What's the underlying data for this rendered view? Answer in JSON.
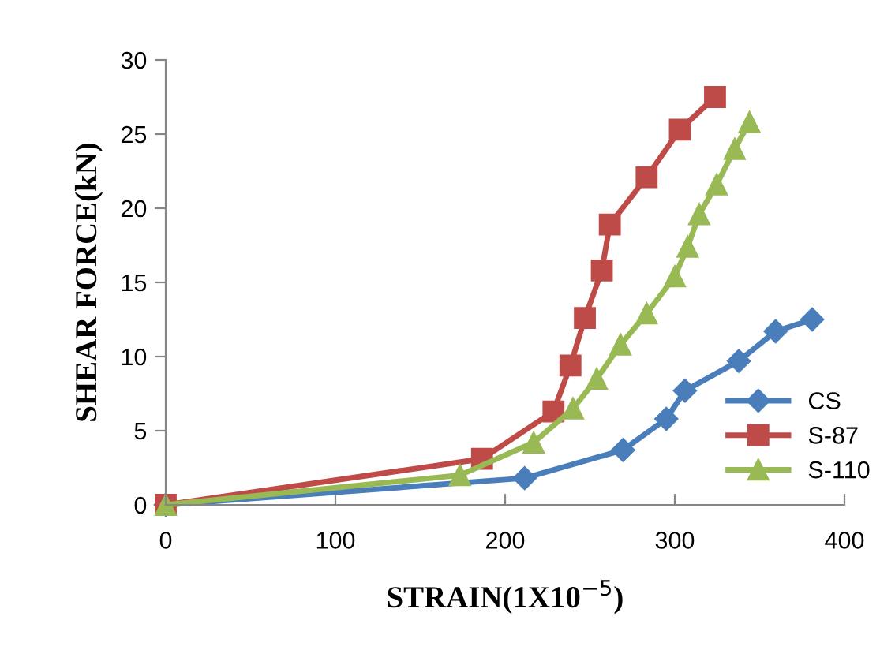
{
  "chart_data": {
    "type": "line",
    "xlabel": "STRAIN(1X10$^{−5}$)",
    "ylabel": "SHEAR FORCE(kN)",
    "xlim": [
      0,
      400
    ],
    "xticks": [
      0,
      100,
      200,
      300,
      400
    ],
    "ylim": [
      0,
      30
    ],
    "yticks": [
      0,
      5,
      10,
      15,
      20,
      25,
      30
    ],
    "grid": false,
    "legend": "right",
    "line_style": "solid",
    "series": [
      {
        "name": "CS",
        "color": "#4a7ebb",
        "marker": "diamond",
        "x": [
          0,
          211.5,
          269.5,
          295,
          306,
          337.7,
          359.4,
          381
        ],
        "values": [
          0,
          1.8,
          3.7,
          5.8,
          7.7,
          9.7,
          11.7,
          12.5
        ]
      },
      {
        "name": "S-87",
        "color": "#be4b48",
        "marker": "square",
        "x": [
          0,
          186.4,
          228.5,
          238.5,
          247,
          257,
          261.7,
          283.4,
          303,
          323.7
        ],
        "values": [
          0,
          3.1,
          6.3,
          9.4,
          12.6,
          15.8,
          18.9,
          22.1,
          25.3,
          27.5
        ]
      },
      {
        "name": "S-110",
        "color": "#98b954",
        "marker": "triangle",
        "x": [
          0,
          173.4,
          216.8,
          240,
          254,
          268,
          283.4,
          300,
          307.6,
          314.4,
          324.7,
          335.3,
          344
        ],
        "values": [
          0,
          2.0,
          4.2,
          6.5,
          8.5,
          10.8,
          12.9,
          15.4,
          17.4,
          19.6,
          21.6,
          24.0,
          25.8
        ]
      }
    ]
  }
}
